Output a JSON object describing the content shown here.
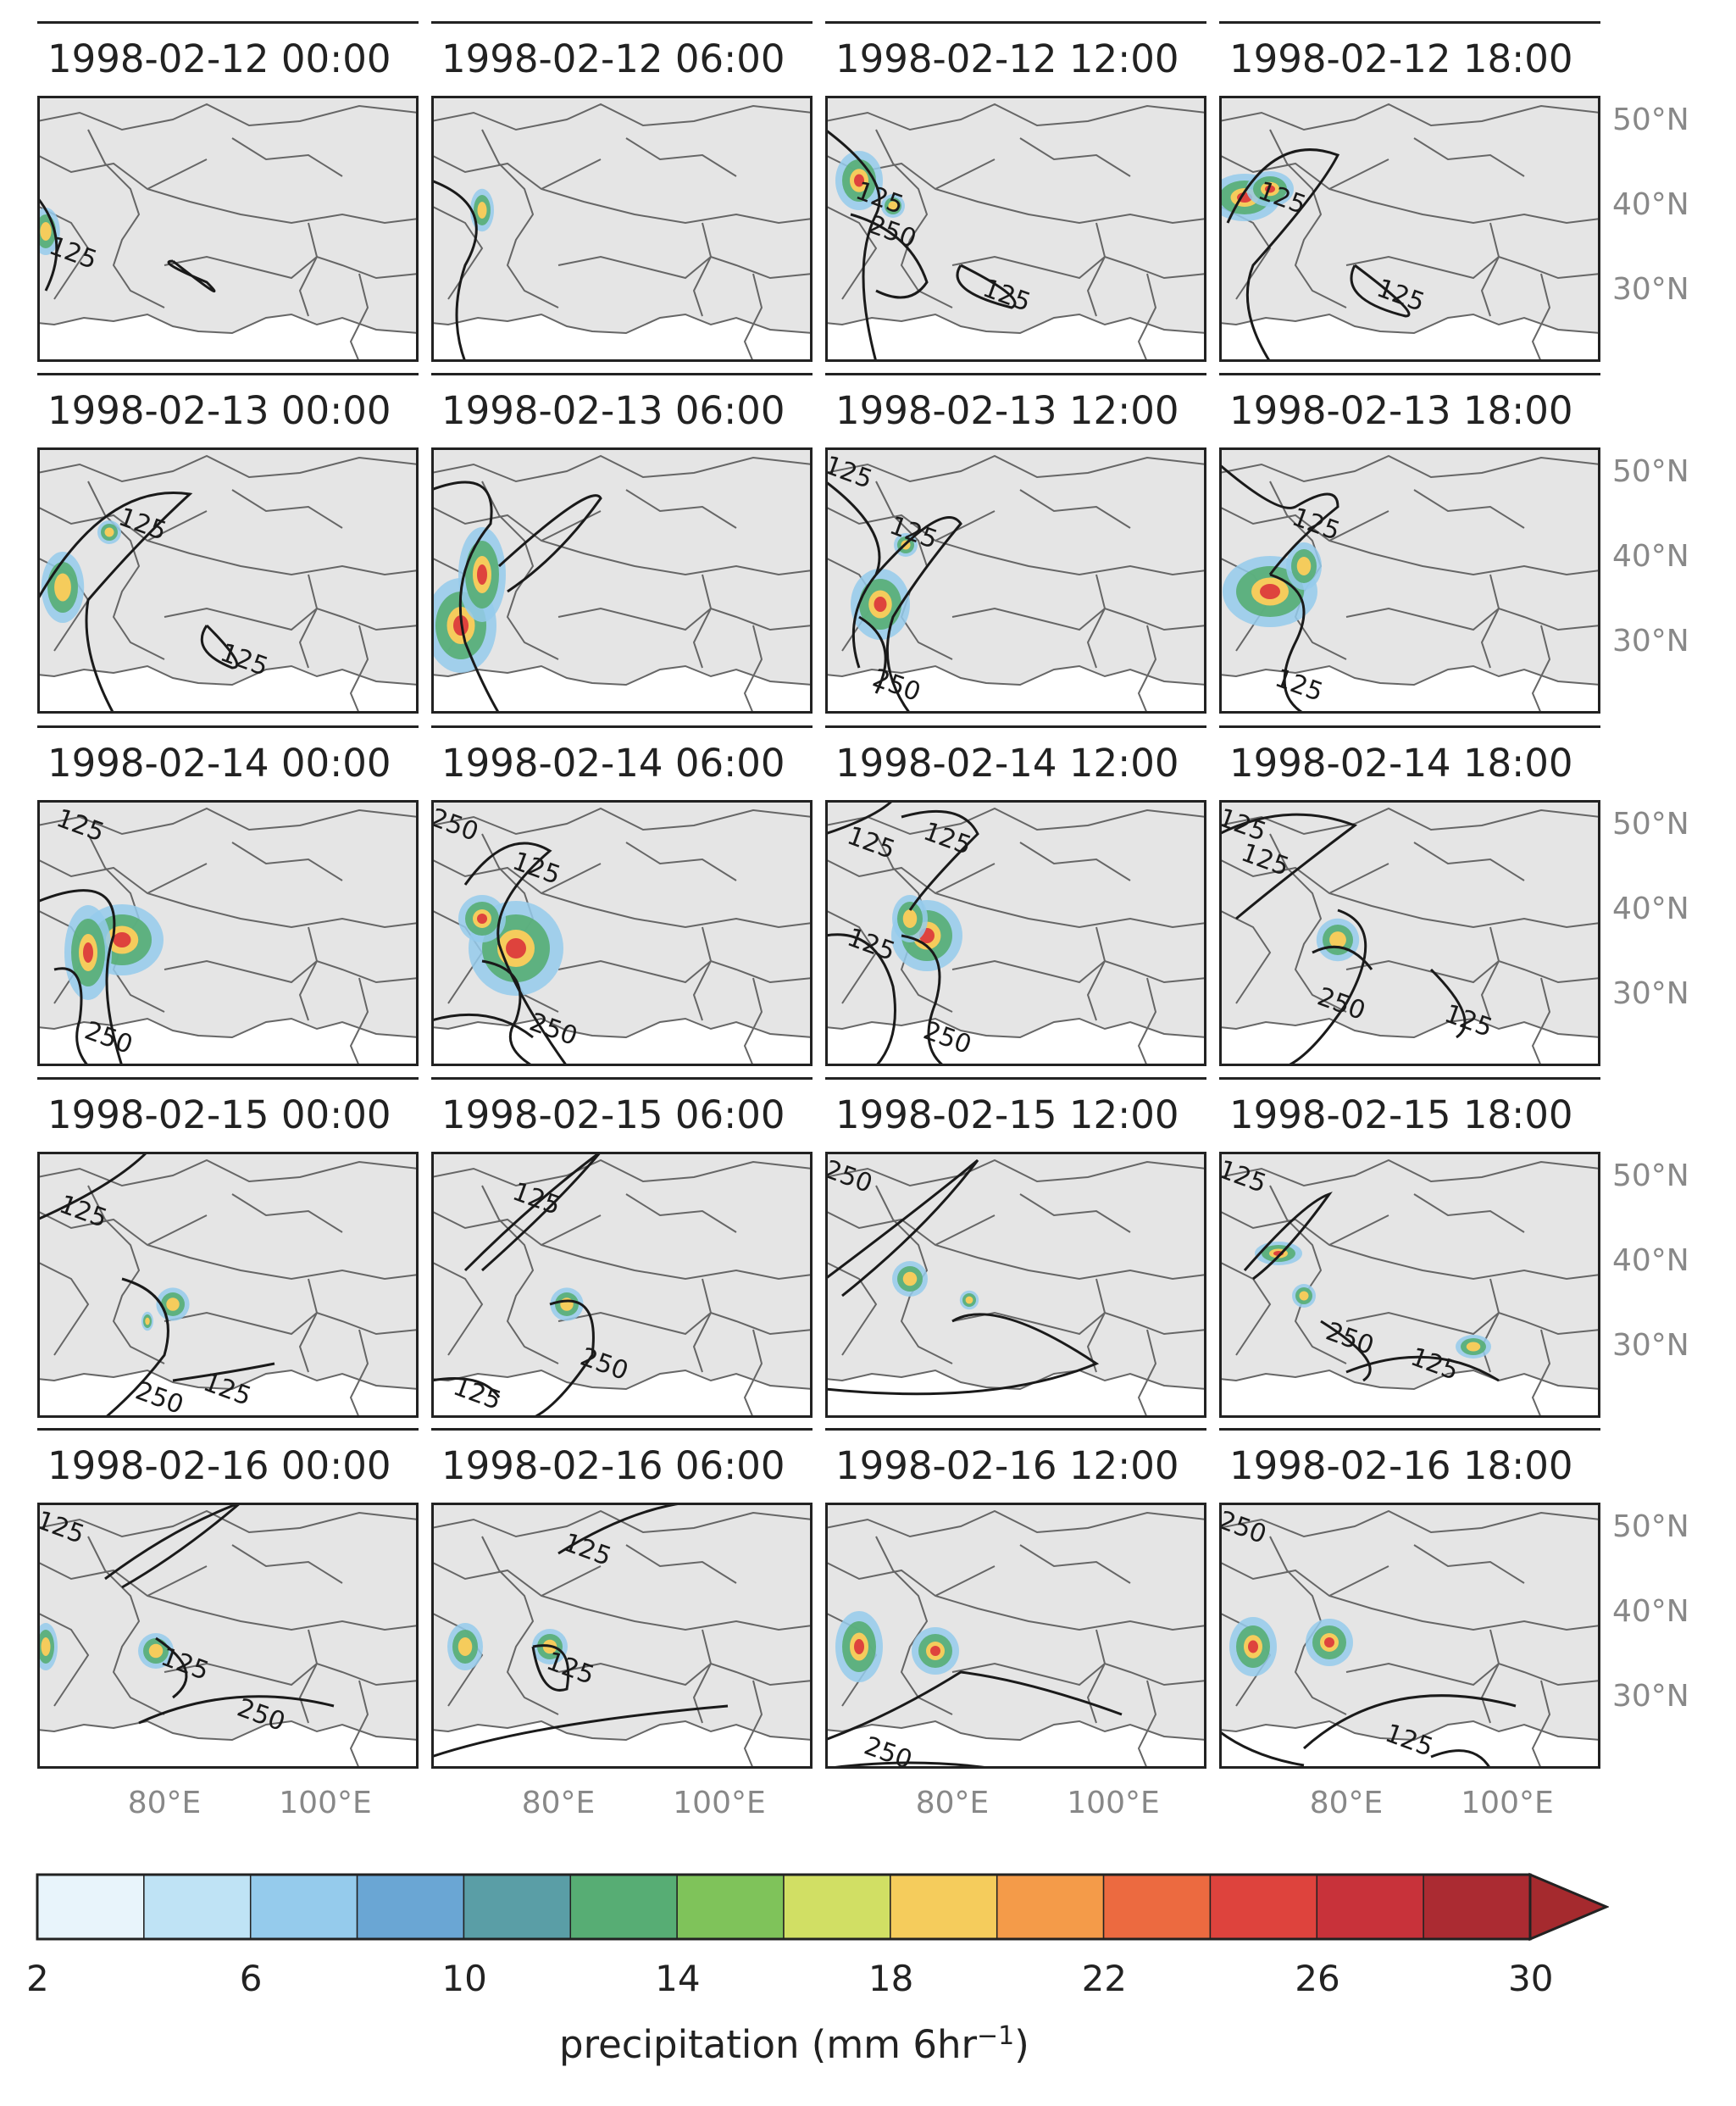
{
  "panels": [
    {
      "title": "1998-02-12 00:00",
      "contours": [
        "125"
      ]
    },
    {
      "title": "1998-02-12 06:00",
      "contours": []
    },
    {
      "title": "1998-02-12 12:00",
      "contours": [
        "125",
        "250",
        "125"
      ]
    },
    {
      "title": "1998-02-12 18:00",
      "contours": [
        "125",
        "125"
      ]
    },
    {
      "title": "1998-02-13 00:00",
      "contours": [
        "125",
        "125"
      ]
    },
    {
      "title": "1998-02-13 06:00",
      "contours": []
    },
    {
      "title": "1998-02-13 12:00",
      "contours": [
        "125",
        "125",
        "250"
      ]
    },
    {
      "title": "1998-02-13 18:00",
      "contours": [
        "125",
        "125"
      ]
    },
    {
      "title": "1998-02-14 00:00",
      "contours": [
        "125",
        "250"
      ]
    },
    {
      "title": "1998-02-14 06:00",
      "contours": [
        "125",
        "250",
        "250"
      ]
    },
    {
      "title": "1998-02-14 12:00",
      "contours": [
        "125",
        "125",
        "125",
        "250"
      ]
    },
    {
      "title": "1998-02-14 18:00",
      "contours": [
        "125",
        "250",
        "125",
        "125"
      ]
    },
    {
      "title": "1998-02-15 00:00",
      "contours": [
        "125",
        "250",
        "125"
      ]
    },
    {
      "title": "1998-02-15 06:00",
      "contours": [
        "125",
        "125",
        "250"
      ]
    },
    {
      "title": "1998-02-15 12:00",
      "contours": [
        "250"
      ]
    },
    {
      "title": "1998-02-15 18:00",
      "contours": [
        "125",
        "250",
        "125"
      ]
    },
    {
      "title": "1998-02-16 00:00",
      "contours": [
        "125",
        "125",
        "250"
      ]
    },
    {
      "title": "1998-02-16 06:00",
      "contours": [
        "125",
        "125"
      ]
    },
    {
      "title": "1998-02-16 12:00",
      "contours": [
        "250"
      ]
    },
    {
      "title": "1998-02-16 18:00",
      "contours": [
        "250",
        "125"
      ]
    }
  ],
  "lat_labels": [
    "50°N",
    "40°N",
    "30°N"
  ],
  "lon_labels": [
    "80°E",
    "100°E"
  ],
  "colorbar": {
    "label": "precipitation (mm 6hr",
    "label_sup": "−1",
    "label_end": ")",
    "ticks": [
      "2",
      "6",
      "10",
      "14",
      "18",
      "22",
      "26",
      "30"
    ],
    "colors": [
      "#e8f4fb",
      "#bfe3f5",
      "#95cbec",
      "#6aa6d4",
      "#5a9ea6",
      "#57ad74",
      "#7fc35a",
      "#d1df64",
      "#f5cc5c",
      "#f49b49",
      "#ec6a40",
      "#de433d",
      "#c8323a",
      "#ab2b32"
    ],
    "extend_color": "#a52a2e"
  },
  "colors": {
    "land": "#e5e5e5",
    "ocean": "#ffffff",
    "border": "#666666",
    "contour": "#1a1a1a",
    "frame": "#222222",
    "tick_label": "#888888"
  }
}
